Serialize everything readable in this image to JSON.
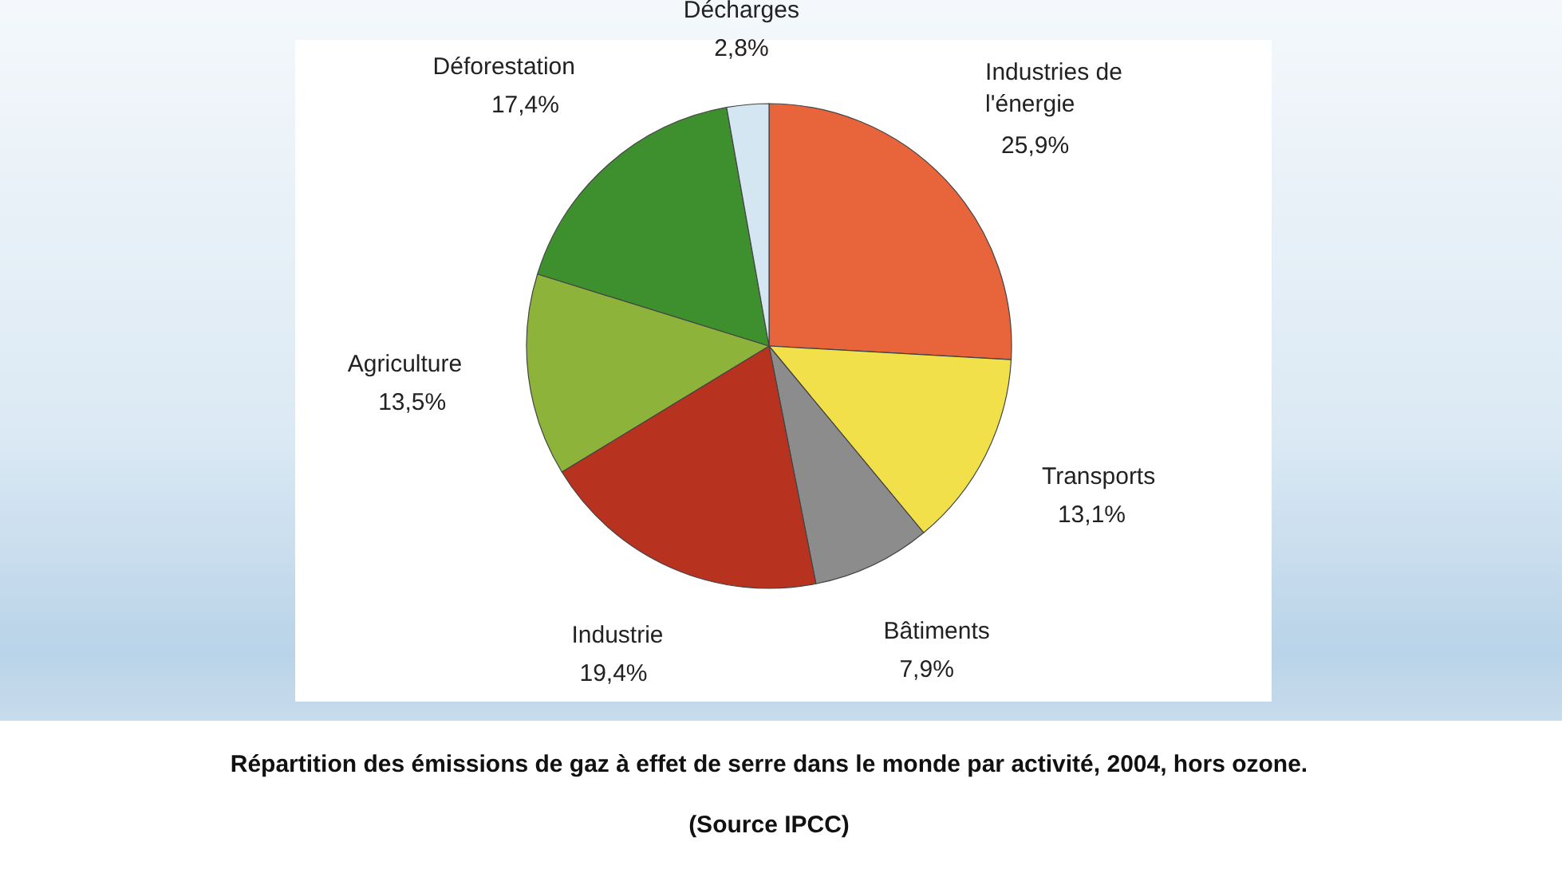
{
  "chart_data": {
    "type": "pie",
    "title": "Répartition des émissions de gaz à effet de serre dans le monde par activité, 2004, hors ozone.",
    "categories": [
      "Industries de l'énergie",
      "Transports",
      "Bâtiments",
      "Industrie",
      "Agriculture",
      "Déforestation",
      "Décharges"
    ],
    "values": [
      25.9,
      13.1,
      7.9,
      19.4,
      13.5,
      17.4,
      2.8
    ],
    "colors": [
      "#e8643a",
      "#f2e04a",
      "#8c8c8c",
      "#b83220",
      "#8db33a",
      "#3e8f2e",
      "#d4e6f2"
    ],
    "value_labels": [
      "25,9%",
      "13,1%",
      "7,9%",
      "19,4%",
      "13,5%",
      "17,4%",
      "2,8%"
    ],
    "annotations": [
      "(Source IPCC)"
    ]
  }
}
